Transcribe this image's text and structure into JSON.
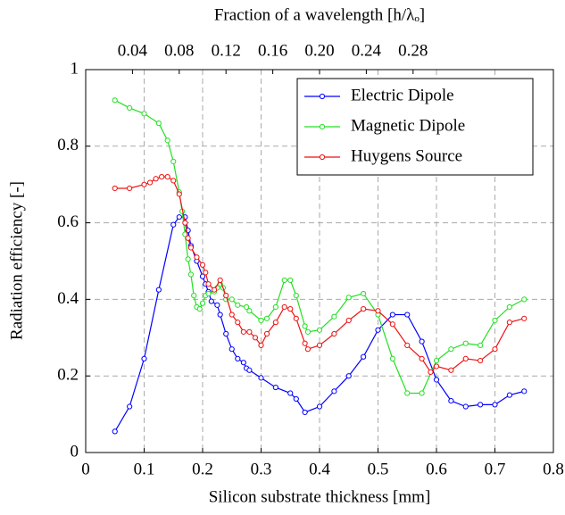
{
  "chart_data": {
    "type": "line",
    "x_label": "Silicon substrate thickness [mm]",
    "y_label": "Radiation efficiency [-]",
    "x2_label": "Fraction of a wavelength [h/λₒ]",
    "xlim": [
      0,
      0.8
    ],
    "xticks": [
      0,
      0.1,
      0.2,
      0.3,
      0.4,
      0.5,
      0.6,
      0.7,
      0.8
    ],
    "ylim": [
      0,
      1
    ],
    "yticks": [
      0,
      0.2,
      0.4,
      0.6,
      0.8,
      1
    ],
    "x2lim": [
      0,
      0.4
    ],
    "x2ticks": [
      0.04,
      0.08,
      0.12,
      0.16,
      {
        "value": 0.2,
        "label": "0.20"
      },
      0.24,
      0.28
    ],
    "grid": true,
    "legend": "top-right",
    "series": [
      {
        "name": "Electric Dipole",
        "color": "#0000ff",
        "x": [
          0.05,
          0.075,
          0.1,
          0.125,
          0.15,
          0.16,
          0.17,
          0.175,
          0.18,
          0.19,
          0.2,
          0.205,
          0.21,
          0.215,
          0.225,
          0.23,
          0.24,
          0.25,
          0.26,
          0.27,
          0.275,
          0.28,
          0.3,
          0.325,
          0.35,
          0.36,
          0.375,
          0.4,
          0.425,
          0.45,
          0.475,
          0.5,
          0.525,
          0.55,
          0.575,
          0.6,
          0.625,
          0.65,
          0.675,
          0.7,
          0.725,
          0.75
        ],
        "values": [
          0.055,
          0.12,
          0.245,
          0.425,
          0.595,
          0.615,
          0.615,
          0.58,
          0.54,
          0.5,
          0.46,
          0.44,
          0.42,
          0.395,
          0.385,
          0.36,
          0.31,
          0.27,
          0.245,
          0.235,
          0.22,
          0.215,
          0.195,
          0.17,
          0.155,
          0.14,
          0.105,
          0.12,
          0.16,
          0.2,
          0.25,
          0.32,
          0.36,
          0.36,
          0.29,
          0.19,
          0.135,
          0.12,
          0.125,
          0.125,
          0.15,
          0.16
        ]
      },
      {
        "name": "Magnetic Dipole",
        "color": "#22e022",
        "x": [
          0.05,
          0.075,
          0.1,
          0.125,
          0.14,
          0.15,
          0.16,
          0.165,
          0.17,
          0.175,
          0.18,
          0.185,
          0.19,
          0.195,
          0.2,
          0.205,
          0.21,
          0.22,
          0.225,
          0.23,
          0.235,
          0.24,
          0.25,
          0.26,
          0.275,
          0.28,
          0.3,
          0.31,
          0.325,
          0.34,
          0.35,
          0.36,
          0.375,
          0.38,
          0.4,
          0.425,
          0.45,
          0.475,
          0.5,
          0.525,
          0.55,
          0.575,
          0.6,
          0.625,
          0.65,
          0.675,
          0.7,
          0.725,
          0.75
        ],
        "values": [
          0.92,
          0.9,
          0.885,
          0.86,
          0.815,
          0.76,
          0.68,
          0.63,
          0.57,
          0.505,
          0.465,
          0.41,
          0.38,
          0.375,
          0.39,
          0.41,
          0.415,
          0.42,
          0.43,
          0.44,
          0.43,
          0.4,
          0.4,
          0.385,
          0.38,
          0.37,
          0.345,
          0.35,
          0.38,
          0.45,
          0.45,
          0.41,
          0.33,
          0.315,
          0.32,
          0.355,
          0.405,
          0.415,
          0.36,
          0.245,
          0.155,
          0.155,
          0.24,
          0.27,
          0.285,
          0.28,
          0.345,
          0.38,
          0.4
        ]
      },
      {
        "name": "Huygens Source",
        "color": "#ee1111",
        "x": [
          0.05,
          0.075,
          0.1,
          0.11,
          0.12,
          0.13,
          0.14,
          0.15,
          0.16,
          0.17,
          0.175,
          0.18,
          0.19,
          0.2,
          0.205,
          0.21,
          0.22,
          0.23,
          0.24,
          0.25,
          0.26,
          0.27,
          0.28,
          0.29,
          0.3,
          0.31,
          0.325,
          0.34,
          0.35,
          0.36,
          0.375,
          0.38,
          0.4,
          0.425,
          0.45,
          0.475,
          0.5,
          0.525,
          0.55,
          0.575,
          0.59,
          0.6,
          0.625,
          0.65,
          0.675,
          0.7,
          0.725,
          0.75
        ],
        "values": [
          0.69,
          0.69,
          0.7,
          0.705,
          0.715,
          0.72,
          0.72,
          0.71,
          0.675,
          0.6,
          0.56,
          0.535,
          0.51,
          0.49,
          0.47,
          0.44,
          0.425,
          0.45,
          0.41,
          0.36,
          0.34,
          0.315,
          0.315,
          0.3,
          0.28,
          0.31,
          0.34,
          0.38,
          0.375,
          0.35,
          0.285,
          0.27,
          0.28,
          0.31,
          0.345,
          0.375,
          0.37,
          0.335,
          0.28,
          0.245,
          0.21,
          0.225,
          0.215,
          0.245,
          0.24,
          0.27,
          0.34,
          0.35
        ]
      }
    ]
  }
}
